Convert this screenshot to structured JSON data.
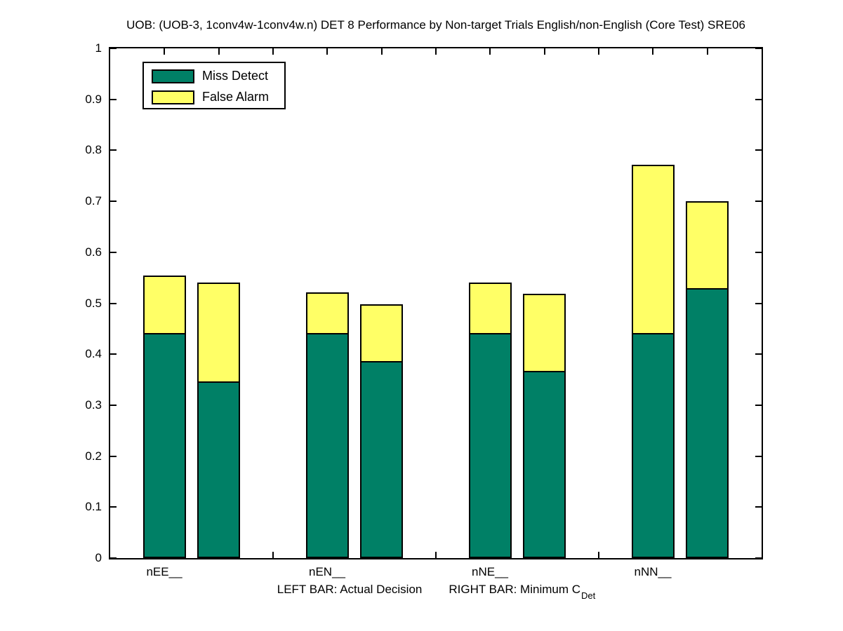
{
  "title": "UOB: (UOB-3, 1conv4w-1conv4w.n) DET 8 Performance by Non-target Trials English/non-English (Core Test) SRE06",
  "legend": {
    "items": [
      {
        "label": "Miss Detect",
        "color": "#008066"
      },
      {
        "label": "False Alarm",
        "color": "#FFFF66"
      }
    ]
  },
  "xlabel": {
    "left_text": "LEFT BAR: Actual Decision",
    "right_text": "RIGHT BAR: Minimum C",
    "subscript": "Det"
  },
  "colors": {
    "miss_detect": "#008066",
    "false_alarm": "#FFFF66",
    "axis": "#000000",
    "background": "#ffffff"
  },
  "chart_data": {
    "type": "bar",
    "stacked": true,
    "bar_pair_meaning": {
      "left": "Actual Decision",
      "right": "Minimum CDet"
    },
    "categories": [
      "nEE__",
      "nEN__",
      "nNE__",
      "nNN__"
    ],
    "series_labels": [
      "Miss Detect",
      "False Alarm"
    ],
    "groups": [
      {
        "category": "nEE__",
        "left": {
          "miss_detect": 0.442,
          "false_alarm": 0.113,
          "total": 0.555
        },
        "right": {
          "miss_detect": 0.347,
          "false_alarm": 0.194,
          "total": 0.541
        }
      },
      {
        "category": "nEN__",
        "left": {
          "miss_detect": 0.441,
          "false_alarm": 0.08,
          "total": 0.521
        },
        "right": {
          "miss_detect": 0.387,
          "false_alarm": 0.111,
          "total": 0.498
        }
      },
      {
        "category": "nNE__",
        "left": {
          "miss_detect": 0.441,
          "false_alarm": 0.099,
          "total": 0.54
        },
        "right": {
          "miss_detect": 0.367,
          "false_alarm": 0.151,
          "total": 0.518
        }
      },
      {
        "category": "nNN__",
        "left": {
          "miss_detect": 0.441,
          "false_alarm": 0.33,
          "total": 0.771
        },
        "right": {
          "miss_detect": 0.529,
          "false_alarm": 0.171,
          "total": 0.7
        }
      }
    ],
    "ylim": [
      0,
      1
    ],
    "ytick_labels": [
      "0",
      "0.1",
      "0.2",
      "0.3",
      "0.4",
      "0.5",
      "0.6",
      "0.7",
      "0.8",
      "0.9",
      "1"
    ],
    "x_units_range": [
      0,
      12
    ],
    "bar_unit_positions": [
      [
        1,
        2
      ],
      [
        4,
        5
      ],
      [
        7,
        8
      ],
      [
        10,
        11
      ]
    ],
    "top_axis_tick_units": [
      1,
      2,
      3,
      4,
      5,
      6,
      7,
      8,
      9,
      10,
      11
    ],
    "bottom_axis_tick_units": [
      3,
      6,
      9
    ],
    "grid": false,
    "legend_position": "top-left-inside"
  }
}
